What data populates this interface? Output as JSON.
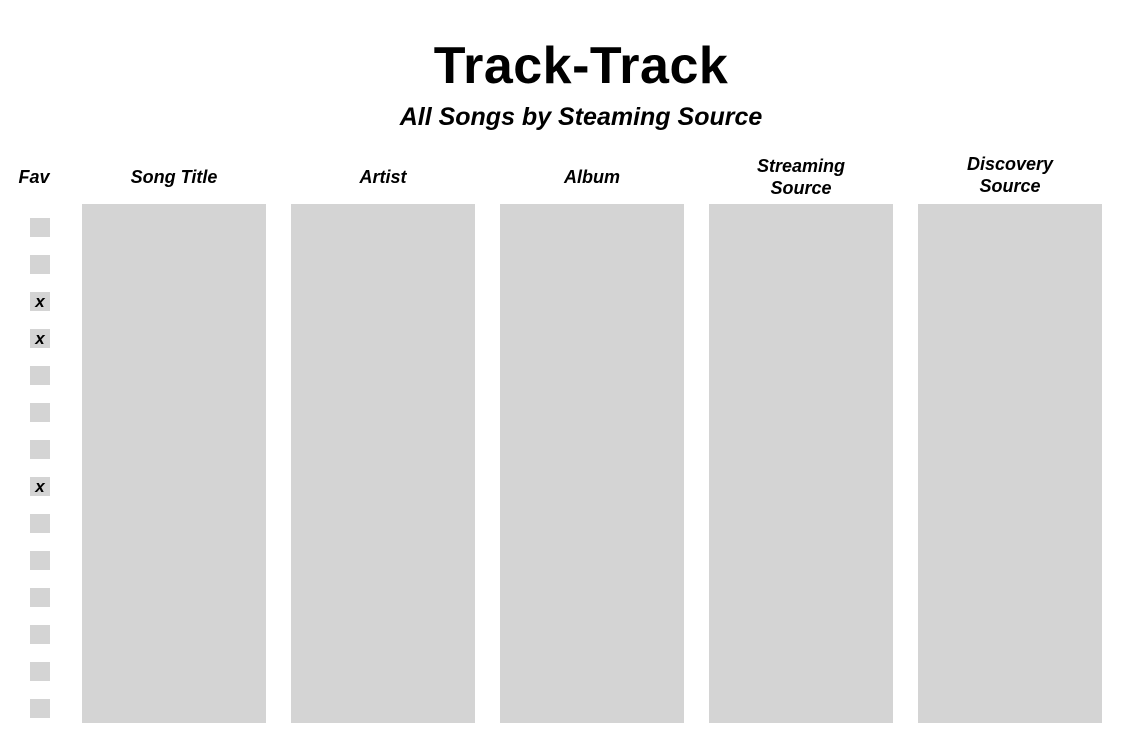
{
  "app_title": "Track-Track",
  "subtitle": "All Songs by Steaming Source",
  "columns": {
    "fav": "Fav",
    "song_title": "Song Title",
    "artist": "Artist",
    "album": "Album",
    "streaming_source": "Streaming\nSource",
    "discovery_source": "Discovery\nSource"
  },
  "fav_rows": [
    "",
    "",
    "x",
    "x",
    "",
    "",
    "",
    "x",
    "",
    "",
    "",
    "",
    "",
    ""
  ],
  "colors": {
    "placeholder": "#d4d4d4",
    "background": "#ffffff"
  }
}
